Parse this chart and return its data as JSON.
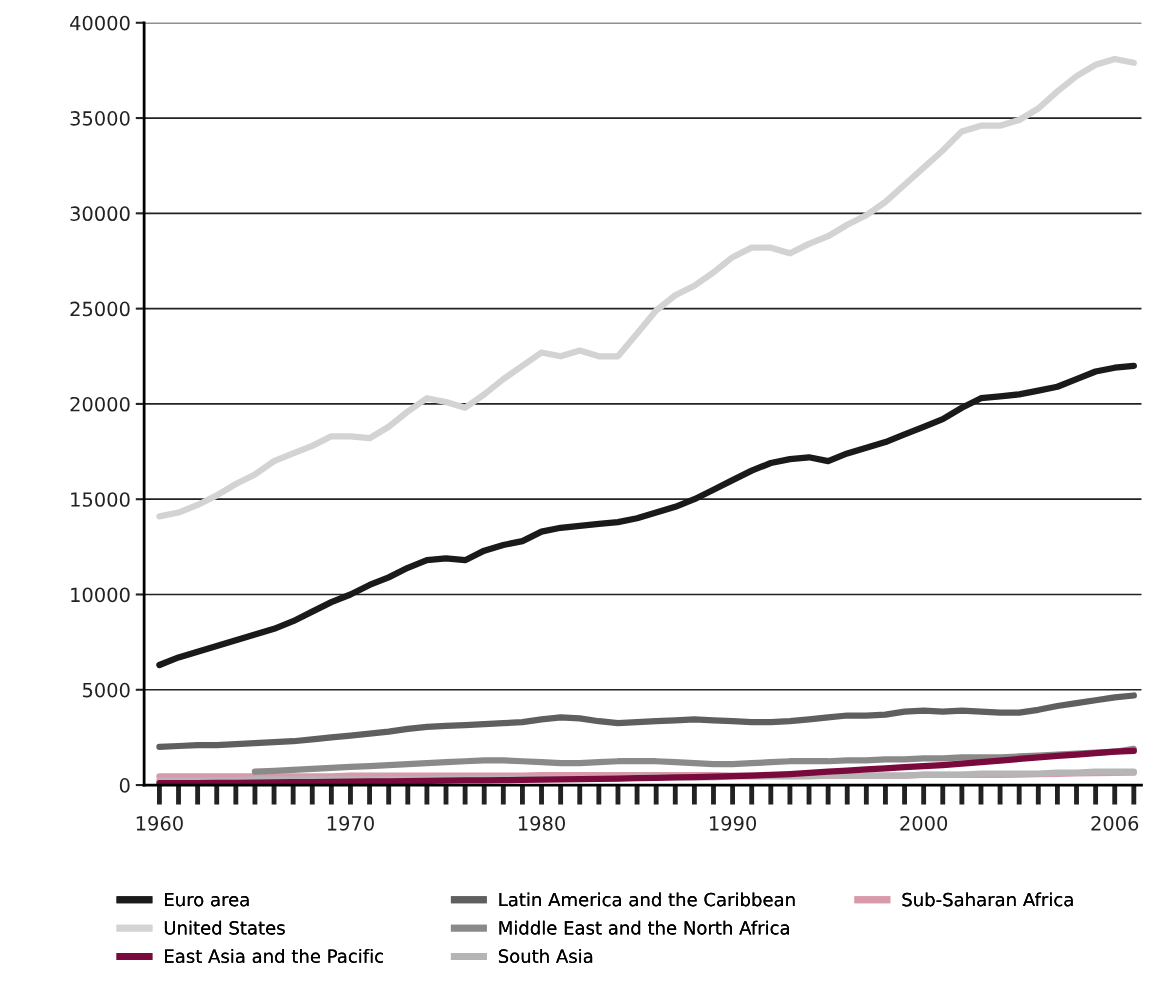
{
  "chart_data": {
    "type": "line",
    "categories": [
      "1960",
      null,
      null,
      null,
      null,
      null,
      null,
      null,
      null,
      null,
      "1970",
      null,
      null,
      null,
      null,
      null,
      null,
      null,
      null,
      null,
      "1980",
      null,
      null,
      null,
      null,
      null,
      null,
      null,
      null,
      null,
      "1990",
      null,
      null,
      null,
      null,
      null,
      null,
      null,
      null,
      null,
      "2000",
      null,
      null,
      null,
      null,
      null,
      null,
      null,
      null,
      null,
      "2006",
      null
    ],
    "ylim": [
      0,
      40000
    ],
    "yticks": [
      0,
      5000,
      10000,
      15000,
      20000,
      25000,
      30000,
      35000,
      40000
    ],
    "grid": "y",
    "legend": "bottom",
    "line_style": "solid",
    "marker": "none",
    "series": [
      {
        "name": "Euro area",
        "color": "#1a1a1a",
        "values": [
          6300,
          6700,
          7000,
          7300,
          7600,
          7900,
          8200,
          8600,
          9100,
          9600,
          10000,
          10500,
          10900,
          11400,
          11800,
          11900,
          11800,
          12300,
          12600,
          12800,
          13300,
          13500,
          13600,
          13700,
          13800,
          14000,
          14300,
          14600,
          15000,
          15500,
          16000,
          16500,
          16900,
          17100,
          17200,
          17000,
          17400,
          17700,
          18000,
          18400,
          18800,
          19200,
          19800,
          20300,
          20400,
          20500,
          20700,
          20900,
          21300,
          21700,
          21900,
          22000
        ]
      },
      {
        "name": "United States",
        "color": "#d3d3d3",
        "values": [
          14100,
          14300,
          14700,
          15200,
          15800,
          16300,
          17000,
          17400,
          17800,
          18300,
          18300,
          18200,
          18800,
          19600,
          20300,
          20100,
          19800,
          20500,
          21300,
          22000,
          22700,
          22500,
          22800,
          22500,
          22500,
          23700,
          24900,
          25700,
          26200,
          26900,
          27700,
          28200,
          28200,
          27900,
          28400,
          28800,
          29400,
          29900,
          30600,
          31500,
          32400,
          33300,
          34300,
          34600,
          34600,
          34900,
          35500,
          36400,
          37200,
          37800,
          38100,
          37900
        ]
      },
      {
        "name": "East Asia and the Pacific",
        "color": "#7a0a3c",
        "values": [
          100,
          100,
          100,
          110,
          120,
          130,
          140,
          150,
          160,
          170,
          180,
          190,
          200,
          210,
          220,
          230,
          240,
          250,
          260,
          270,
          280,
          300,
          310,
          320,
          340,
          360,
          380,
          400,
          420,
          440,
          470,
          500,
          540,
          580,
          640,
          700,
          760,
          820,
          880,
          940,
          1000,
          1050,
          1120,
          1200,
          1280,
          1370,
          1450,
          1530,
          1600,
          1680,
          1750,
          1800
        ]
      },
      {
        "name": "Latin America and the Caribbean",
        "color": "#5f5f5f",
        "values": [
          2000,
          2050,
          2100,
          2100,
          2150,
          2200,
          2250,
          2300,
          2400,
          2500,
          2600,
          2700,
          2800,
          2950,
          3050,
          3100,
          3150,
          3200,
          3250,
          3300,
          3450,
          3550,
          3500,
          3350,
          3250,
          3300,
          3350,
          3400,
          3450,
          3400,
          3350,
          3300,
          3300,
          3350,
          3450,
          3550,
          3650,
          3650,
          3700,
          3850,
          3900,
          3850,
          3900,
          3850,
          3800,
          3800,
          3950,
          4150,
          4300,
          4450,
          4600,
          4700
        ]
      },
      {
        "name": "Middle East and the North Africa",
        "color": "#8a8a8a",
        "values": [
          null,
          null,
          null,
          null,
          null,
          700,
          750,
          800,
          850,
          900,
          950,
          1000,
          1050,
          1100,
          1150,
          1200,
          1250,
          1300,
          1300,
          1250,
          1200,
          1150,
          1150,
          1200,
          1250,
          1250,
          1250,
          1200,
          1150,
          1100,
          1100,
          1150,
          1200,
          1250,
          1250,
          1250,
          1300,
          1300,
          1350,
          1350,
          1400,
          1400,
          1450,
          1450,
          1450,
          1500,
          1550,
          1600,
          1650,
          1700,
          1750,
          1900
        ]
      },
      {
        "name": "South Asia",
        "color": "#b5b5b5",
        "values": [
          250,
          250,
          250,
          250,
          250,
          300,
          300,
          300,
          300,
          300,
          300,
          300,
          300,
          300,
          300,
          350,
          350,
          350,
          350,
          350,
          350,
          350,
          350,
          350,
          350,
          400,
          400,
          400,
          400,
          400,
          450,
          450,
          450,
          450,
          450,
          500,
          500,
          500,
          500,
          500,
          550,
          550,
          550,
          600,
          600,
          600,
          600,
          650,
          650,
          700,
          700,
          700
        ]
      },
      {
        "name": "Sub-Saharan Africa",
        "color": "#d89aaa",
        "values": [
          450,
          450,
          450,
          450,
          450,
          450,
          450,
          450,
          450,
          450,
          500,
          500,
          500,
          500,
          500,
          500,
          500,
          500,
          500,
          500,
          520,
          520,
          520,
          520,
          520,
          520,
          520,
          520,
          520,
          520,
          500,
          500,
          500,
          500,
          500,
          500,
          500,
          500,
          500,
          500,
          530,
          530,
          530,
          530,
          530,
          550,
          570,
          590,
          610,
          630,
          640,
          650
        ]
      }
    ]
  }
}
